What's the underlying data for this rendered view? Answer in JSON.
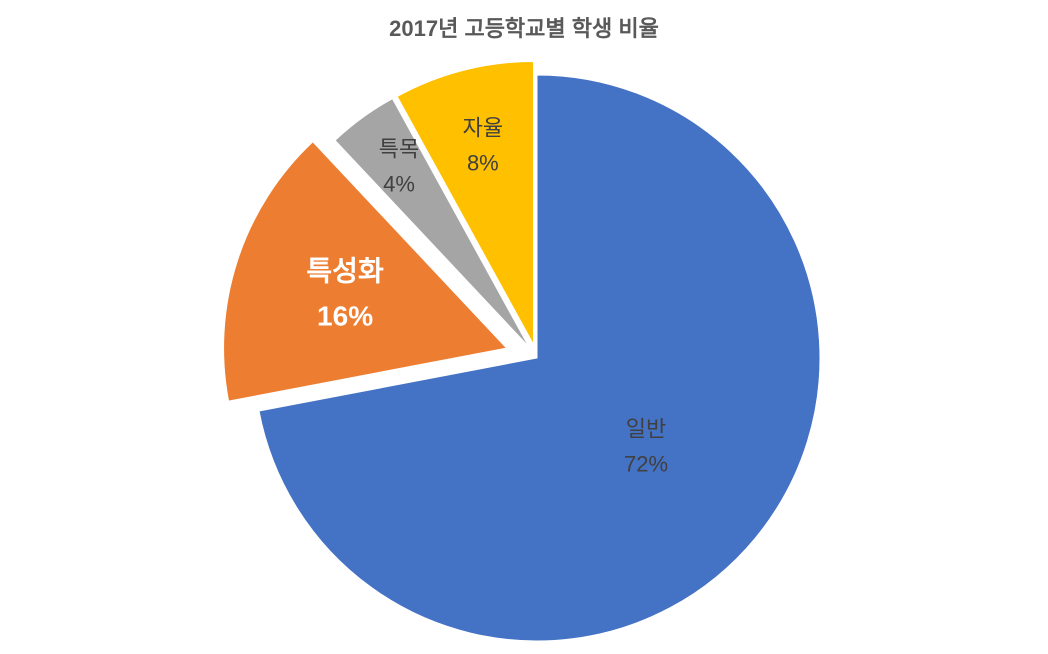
{
  "chart_data": {
    "type": "pie",
    "title": "2017년 고등학교별 학생 비율",
    "categories": [
      "일반",
      "특성화",
      "특목",
      "자율"
    ],
    "values": [
      72,
      16,
      4,
      8
    ],
    "value_labels": [
      "72%",
      "16%",
      "4%",
      "8%"
    ],
    "colors": [
      "#4472c4",
      "#ed7d31",
      "#a5a5a5",
      "#ffc000"
    ]
  }
}
